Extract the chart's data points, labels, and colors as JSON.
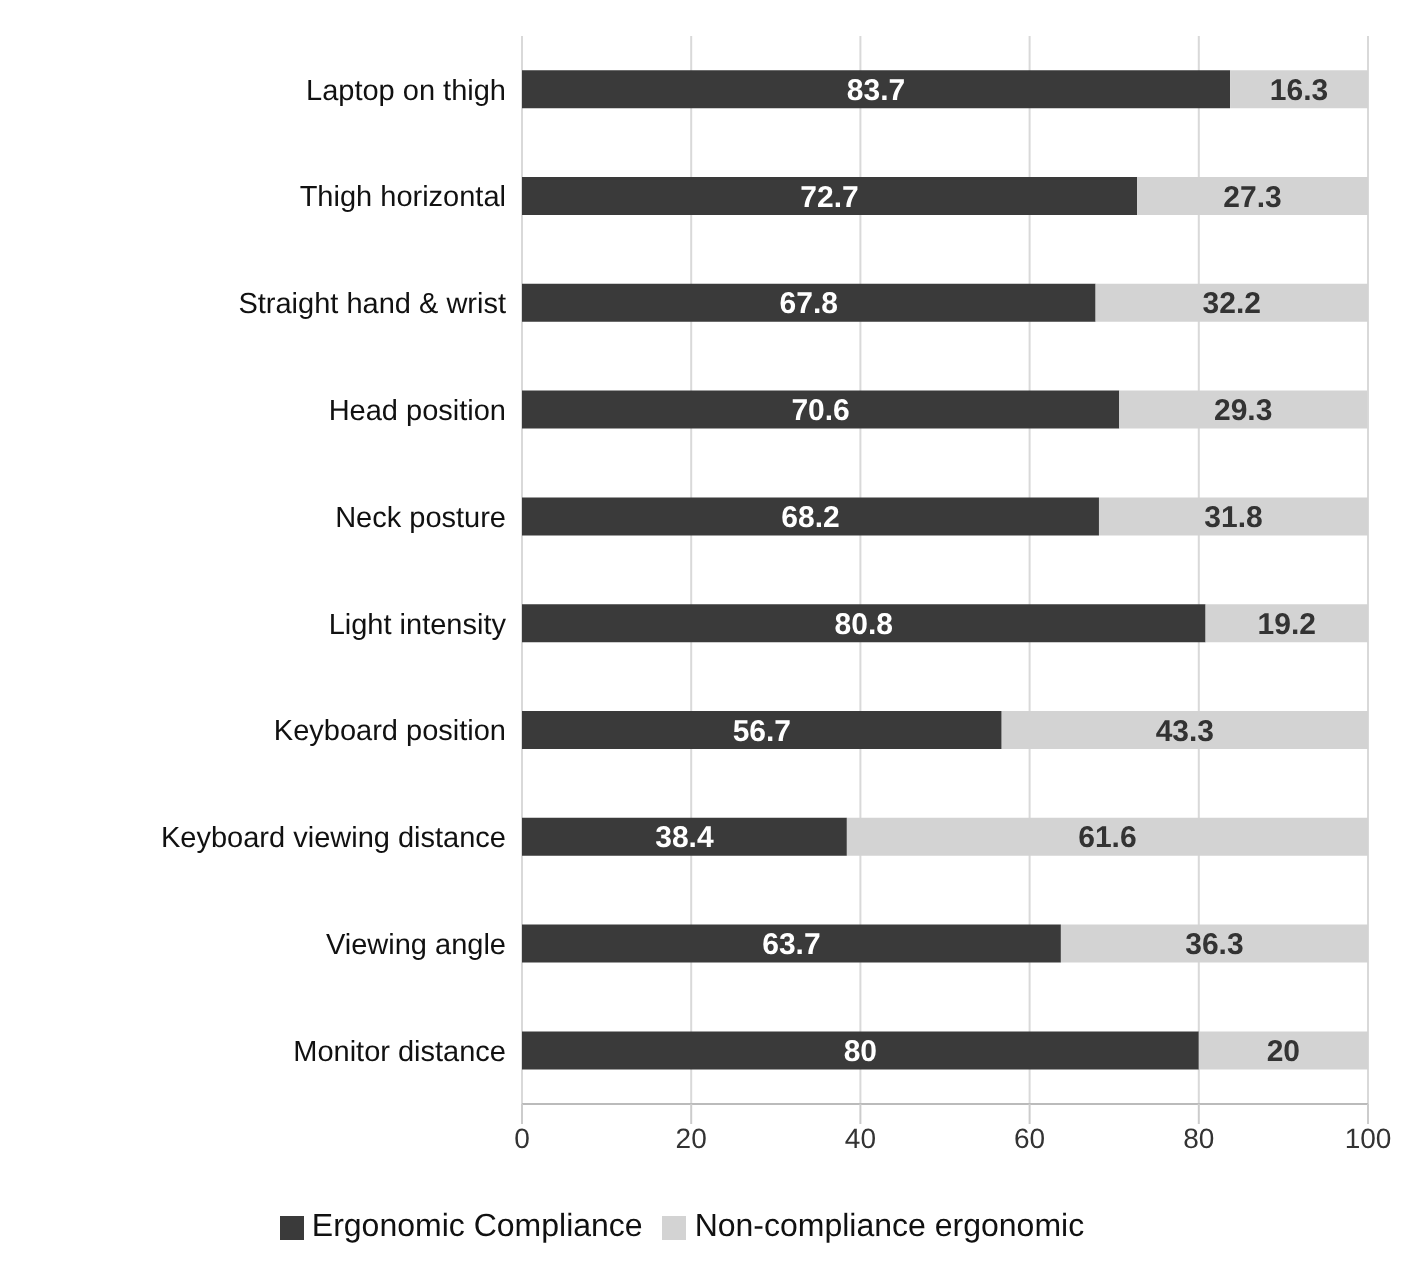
{
  "chart_data": {
    "type": "bar",
    "orientation": "horizontal",
    "stacked": true,
    "categories": [
      "Laptop on thigh",
      "Thigh horizontal",
      "Straight hand & wrist",
      "Head position",
      "Neck posture",
      "Light intensity",
      "Keyboard position",
      "Keyboard viewing distance",
      "Viewing angle",
      "Monitor distance"
    ],
    "series": [
      {
        "name": "Ergonomic Compliance",
        "color": "#3a3a3a",
        "values": [
          83.7,
          72.7,
          67.8,
          70.6,
          68.2,
          80.8,
          56.7,
          38.4,
          63.7,
          80
        ]
      },
      {
        "name": "Non-compliance ergonomic",
        "color": "#d3d3d3",
        "values": [
          16.3,
          27.3,
          32.2,
          29.3,
          31.8,
          19.2,
          43.3,
          61.6,
          36.3,
          20
        ]
      }
    ],
    "xlim": [
      0,
      100
    ],
    "xticks": [
      0,
      20,
      40,
      60,
      80,
      100
    ],
    "grid": "x",
    "legend": "bottom",
    "data_labels": true
  }
}
